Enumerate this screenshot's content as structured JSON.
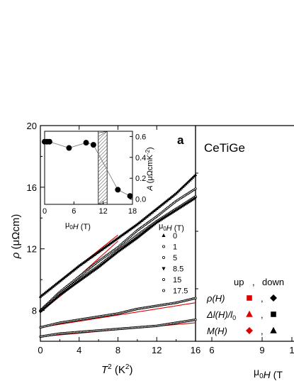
{
  "chart_data": [
    {
      "type": "scatter",
      "panel_label": "a",
      "xlabel_main": "T",
      "xlabel_sup": "2",
      "xlabel_unit": "(K",
      "xlabel_unit_sup": "2",
      "xlabel_unit_close": ")",
      "ylabel_main": "ρ",
      "ylabel_unit": "(μΩcm)",
      "xlim": [
        0,
        16
      ],
      "ylim": [
        6,
        20
      ],
      "xticks": [
        "0",
        "4",
        "8",
        "12",
        "16"
      ],
      "yticks": [
        "8",
        "12",
        "16",
        "20"
      ],
      "legend_title_pre": "μ",
      "legend_title_sub": "0",
      "legend_title_post": "H (T)",
      "series": [
        {
          "name": "0",
          "marker": "triangle",
          "x": [
            0,
            2,
            4,
            6,
            8,
            10,
            12,
            14,
            16
          ],
          "y": [
            8.9,
            9.9,
            10.9,
            11.8,
            12.7,
            13.6,
            14.6,
            15.6,
            16.8
          ]
        },
        {
          "name": "1",
          "marker": "circle",
          "x": [
            0,
            2,
            4,
            6,
            8,
            10,
            12,
            14,
            16
          ],
          "y": [
            8.0,
            9.2,
            10.2,
            11.2,
            12.1,
            13.2,
            14.1,
            15.1,
            15.9
          ]
        },
        {
          "name": "5",
          "marker": "circle",
          "x": [
            0,
            2,
            4,
            6,
            8,
            10,
            12,
            14,
            16
          ],
          "y": [
            7.95,
            9.1,
            10.0,
            10.9,
            11.9,
            12.9,
            13.8,
            14.6,
            15.4
          ]
        },
        {
          "name": "8.5",
          "marker": "down-triangle",
          "x": [
            0,
            2,
            4,
            6,
            8,
            10,
            12,
            14,
            16
          ],
          "y": [
            7.9,
            9.0,
            9.9,
            10.8,
            11.8,
            12.7,
            13.7,
            14.5,
            15.3
          ]
        },
        {
          "name": "15",
          "marker": "circle",
          "x": [
            0,
            2,
            4,
            6,
            8,
            10,
            12,
            14,
            16
          ],
          "y": [
            6.9,
            7.2,
            7.4,
            7.6,
            7.8,
            8.1,
            8.3,
            8.5,
            8.8
          ]
        },
        {
          "name": "17.5",
          "marker": "circle",
          "x": [
            0,
            2,
            4,
            6,
            8,
            10,
            12,
            14,
            16
          ],
          "y": [
            6.3,
            6.5,
            6.6,
            6.7,
            6.8,
            6.9,
            7.0,
            7.2,
            7.4
          ]
        }
      ],
      "fit_lines": [
        {
          "x": [
            0,
            8
          ],
          "y": [
            8.9,
            12.9
          ]
        },
        {
          "x": [
            0,
            8
          ],
          "y": [
            8.0,
            12.5
          ]
        },
        {
          "x": [
            0,
            8
          ],
          "y": [
            7.9,
            11.9
          ]
        },
        {
          "x": [
            0,
            16
          ],
          "y": [
            6.9,
            8.5
          ]
        },
        {
          "x": [
            0,
            16
          ],
          "y": [
            6.3,
            7.2
          ]
        }
      ],
      "fit_color": "#e00000"
    },
    {
      "type": "scatter",
      "panel": "inset",
      "xlabel_pre": "μ",
      "xlabel_sub": "0",
      "xlabel_post": "H (T)",
      "ylabel_main": "A",
      "ylabel_unit": "(μΩcmK",
      "ylabel_unit_sup": "-2",
      "ylabel_unit_close": ")",
      "xlim": [
        0,
        18
      ],
      "ylim": [
        -0.05,
        0.65
      ],
      "xticks": [
        "0",
        "6",
        "12",
        "18"
      ],
      "yticks": [
        "0.0",
        "0.2",
        "0.4",
        "0.6"
      ],
      "x": [
        0,
        0.5,
        1,
        5,
        8.5,
        10,
        15,
        17.5
      ],
      "y": [
        0.55,
        0.55,
        0.55,
        0.49,
        0.54,
        0.52,
        0.09,
        0.03
      ],
      "hatch_band": [
        11,
        12.8
      ]
    },
    {
      "type": "scatter",
      "panel": "right",
      "title": "CeTiGe",
      "xlabel_pre": "μ",
      "xlabel_sub": "0",
      "xlabel_post": "H (T",
      "xticks": [
        "6",
        "9",
        "1"
      ],
      "legend": {
        "header_up": "up",
        "header_sep": ",",
        "header_down": "down",
        "rows": [
          {
            "label_pre": "ρ",
            "label_post": "(H)",
            "up_marker": "square",
            "up_color": "#e00000",
            "down_marker": "diamond",
            "down_color": "#000000"
          },
          {
            "label_pre": "Δl",
            "label_post": "(H)/l",
            "label_sub": "0",
            "up_marker": "triangle",
            "up_color": "#e00000",
            "down_marker": "square",
            "down_color": "#000000"
          },
          {
            "label_pre": "M",
            "label_post": "(H)",
            "up_marker": "diamond",
            "up_color": "#e00000",
            "down_marker": "triangle",
            "down_color": "#000000"
          }
        ]
      }
    }
  ]
}
